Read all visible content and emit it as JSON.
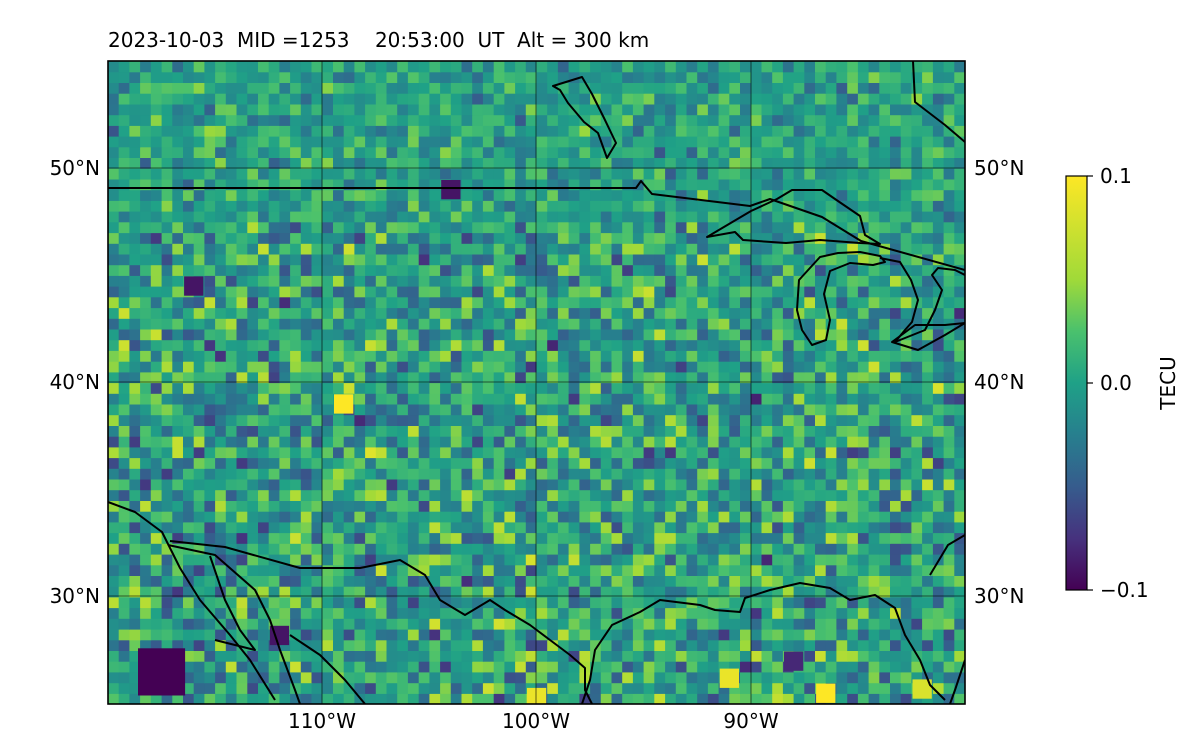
{
  "title": "2023-10-03  MID =1253    20:53:00  UT  Alt = 300 km",
  "chart_data": {
    "type": "heatmap",
    "title": "2023-10-03  MID =1253    20:53:00  UT  Alt = 300 km",
    "lon_range": [
      -120,
      -80
    ],
    "lat_range": [
      25,
      55
    ],
    "x_ticks": [
      {
        "value": -110,
        "label": "110°W"
      },
      {
        "value": -100,
        "label": "100°W"
      },
      {
        "value": -90,
        "label": "90°W"
      }
    ],
    "y_ticks": [
      {
        "value": 50,
        "label": "50°N"
      },
      {
        "value": 40,
        "label": "40°N"
      },
      {
        "value": 30,
        "label": "30°N"
      }
    ],
    "grid": true,
    "colormap": "viridis",
    "colorbar": {
      "label": "TECU",
      "min": -0.1,
      "max": 0.1,
      "ticks": [
        {
          "value": 0.1,
          "label": "0.1"
        },
        {
          "value": 0.0,
          "label": "0.0"
        },
        {
          "value": -0.1,
          "label": "−0.1"
        }
      ]
    },
    "cell_size_deg": 0.5,
    "background_value": 0.0,
    "notable_cells": [
      {
        "lon": -117.5,
        "lat": 26.5,
        "value": -0.1
      },
      {
        "lon": -112,
        "lat": 28.2,
        "value": -0.09
      },
      {
        "lon": -109,
        "lat": 39,
        "value": 0.1
      },
      {
        "lon": -86.5,
        "lat": 25.5,
        "value": 0.1
      },
      {
        "lon": -91,
        "lat": 26.2,
        "value": 0.09
      },
      {
        "lon": -100,
        "lat": 25.3,
        "value": 0.09
      },
      {
        "lon": -82,
        "lat": 25.7,
        "value": 0.08
      },
      {
        "lon": -116,
        "lat": 44.5,
        "value": -0.09
      },
      {
        "lon": -104,
        "lat": 49,
        "value": -0.09
      },
      {
        "lon": -88,
        "lat": 27,
        "value": -0.08
      }
    ]
  }
}
